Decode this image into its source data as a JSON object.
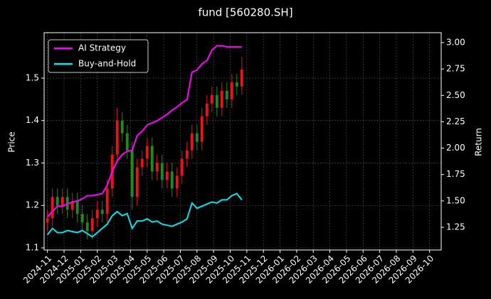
{
  "chart_data": {
    "type": "candlestick",
    "title": "fund [560280.SH]",
    "ylabel": "Price",
    "y2label": "Return",
    "x": [
      0,
      0.3,
      0.6,
      0.9,
      1.2,
      1.5,
      1.8,
      2.1,
      2.4,
      2.7,
      3.0,
      3.3,
      3.6,
      3.9,
      4.2,
      4.5,
      4.8,
      5.1,
      5.4,
      5.7,
      6.0,
      6.3,
      6.6,
      6.9,
      7.2,
      7.5,
      7.8,
      8.1,
      8.4,
      8.7,
      9.0,
      9.3,
      9.6,
      9.9,
      10.2,
      10.5,
      10.8,
      11.1,
      11.4,
      11.7
    ],
    "open": [
      1.16,
      1.17,
      1.22,
      1.2,
      1.22,
      1.19,
      1.21,
      1.18,
      1.16,
      1.14,
      1.17,
      1.19,
      1.18,
      1.24,
      1.32,
      1.4,
      1.37,
      1.33,
      1.22,
      1.29,
      1.31,
      1.34,
      1.28,
      1.3,
      1.26,
      1.28,
      1.24,
      1.27,
      1.31,
      1.33,
      1.37,
      1.35,
      1.41,
      1.44,
      1.46,
      1.43,
      1.47,
      1.45,
      1.49,
      1.48
    ],
    "high": [
      1.19,
      1.24,
      1.24,
      1.24,
      1.24,
      1.23,
      1.23,
      1.2,
      1.18,
      1.19,
      1.21,
      1.21,
      1.26,
      1.34,
      1.43,
      1.42,
      1.39,
      1.35,
      1.31,
      1.33,
      1.36,
      1.36,
      1.32,
      1.32,
      1.3,
      1.3,
      1.29,
      1.33,
      1.35,
      1.39,
      1.39,
      1.43,
      1.46,
      1.48,
      1.48,
      1.49,
      1.49,
      1.51,
      1.51,
      1.55
    ],
    "low": [
      1.14,
      1.15,
      1.18,
      1.18,
      1.17,
      1.17,
      1.16,
      1.14,
      1.12,
      1.12,
      1.15,
      1.16,
      1.16,
      1.22,
      1.3,
      1.35,
      1.31,
      1.19,
      1.2,
      1.27,
      1.29,
      1.26,
      1.26,
      1.24,
      1.24,
      1.22,
      1.22,
      1.25,
      1.29,
      1.31,
      1.33,
      1.33,
      1.39,
      1.42,
      1.41,
      1.41,
      1.43,
      1.43,
      1.46,
      1.46
    ],
    "close": [
      1.17,
      1.22,
      1.2,
      1.22,
      1.19,
      1.21,
      1.18,
      1.16,
      1.14,
      1.17,
      1.19,
      1.18,
      1.24,
      1.32,
      1.4,
      1.37,
      1.33,
      1.22,
      1.29,
      1.31,
      1.34,
      1.28,
      1.3,
      1.26,
      1.28,
      1.24,
      1.27,
      1.31,
      1.33,
      1.37,
      1.35,
      1.41,
      1.44,
      1.46,
      1.43,
      1.47,
      1.45,
      1.49,
      1.48,
      1.52
    ],
    "up_color": "#e8141a",
    "down_color": "#1f8a1f",
    "series": [
      {
        "name": "AI Strategy",
        "color": "#ff00ff",
        "axis": "y2",
        "values": [
          1.35,
          1.4,
          1.45,
          1.45,
          1.47,
          1.49,
          1.5,
          1.52,
          1.55,
          1.55,
          1.56,
          1.57,
          1.65,
          1.78,
          1.88,
          1.94,
          1.97,
          1.98,
          2.12,
          2.16,
          2.22,
          2.24,
          2.26,
          2.29,
          2.32,
          2.36,
          2.39,
          2.43,
          2.46,
          2.72,
          2.74,
          2.8,
          2.83,
          2.93,
          2.97,
          2.97,
          2.96,
          2.96,
          2.96,
          2.96
        ]
      },
      {
        "name": "Buy-and-Hold",
        "color": "#00e5ee",
        "axis": "y2",
        "values": [
          1.18,
          1.24,
          1.2,
          1.2,
          1.22,
          1.21,
          1.2,
          1.22,
          1.19,
          1.16,
          1.2,
          1.24,
          1.28,
          1.36,
          1.4,
          1.36,
          1.38,
          1.24,
          1.31,
          1.31,
          1.33,
          1.3,
          1.31,
          1.28,
          1.27,
          1.26,
          1.28,
          1.3,
          1.33,
          1.48,
          1.43,
          1.45,
          1.47,
          1.49,
          1.48,
          1.51,
          1.51,
          1.55,
          1.57,
          1.51
        ]
      }
    ],
    "xlim": [
      -0.2,
      23.7
    ],
    "xticks": [
      {
        "value": 0,
        "label": "2024-11"
      },
      {
        "value": 1,
        "label": "2024-12"
      },
      {
        "value": 2,
        "label": "2025-01"
      },
      {
        "value": 3,
        "label": "2025-02"
      },
      {
        "value": 4,
        "label": "2025-03"
      },
      {
        "value": 5,
        "label": "2025-04"
      },
      {
        "value": 6,
        "label": "2025-05"
      },
      {
        "value": 7,
        "label": "2025-06"
      },
      {
        "value": 8,
        "label": "2025-07"
      },
      {
        "value": 9,
        "label": "2025-08"
      },
      {
        "value": 10,
        "label": "2025-09"
      },
      {
        "value": 11,
        "label": "2025-10"
      },
      {
        "value": 12,
        "label": "2025-11"
      },
      {
        "value": 13,
        "label": "2025-12"
      },
      {
        "value": 14,
        "label": "2026-01"
      },
      {
        "value": 15,
        "label": "2026-02"
      },
      {
        "value": 16,
        "label": "2026-03"
      },
      {
        "value": 17,
        "label": "2026-04"
      },
      {
        "value": 18,
        "label": "2026-05"
      },
      {
        "value": 19,
        "label": "2026-06"
      },
      {
        "value": 20,
        "label": "2026-07"
      },
      {
        "value": 21,
        "label": "2026-08"
      },
      {
        "value": 22,
        "label": "2026-09"
      },
      {
        "value": 23,
        "label": "2026-10"
      }
    ],
    "ylim": [
      1.095,
      1.607
    ],
    "yticks": [
      1.1,
      1.2,
      1.3,
      1.4,
      1.5
    ],
    "y2lim": [
      1.035,
      3.094
    ],
    "y2ticks": [
      {
        "value": 1.25,
        "label": "1.25"
      },
      {
        "value": 1.5,
        "label": "1.50"
      },
      {
        "value": 1.75,
        "label": "1.75"
      },
      {
        "value": 2.0,
        "label": "2.00"
      },
      {
        "value": 2.25,
        "label": "2.25"
      },
      {
        "value": 2.5,
        "label": "2.50"
      },
      {
        "value": 2.75,
        "label": "2.75"
      },
      {
        "value": 3.0,
        "label": "3.00"
      }
    ],
    "grid": true,
    "legend": "upper left"
  }
}
